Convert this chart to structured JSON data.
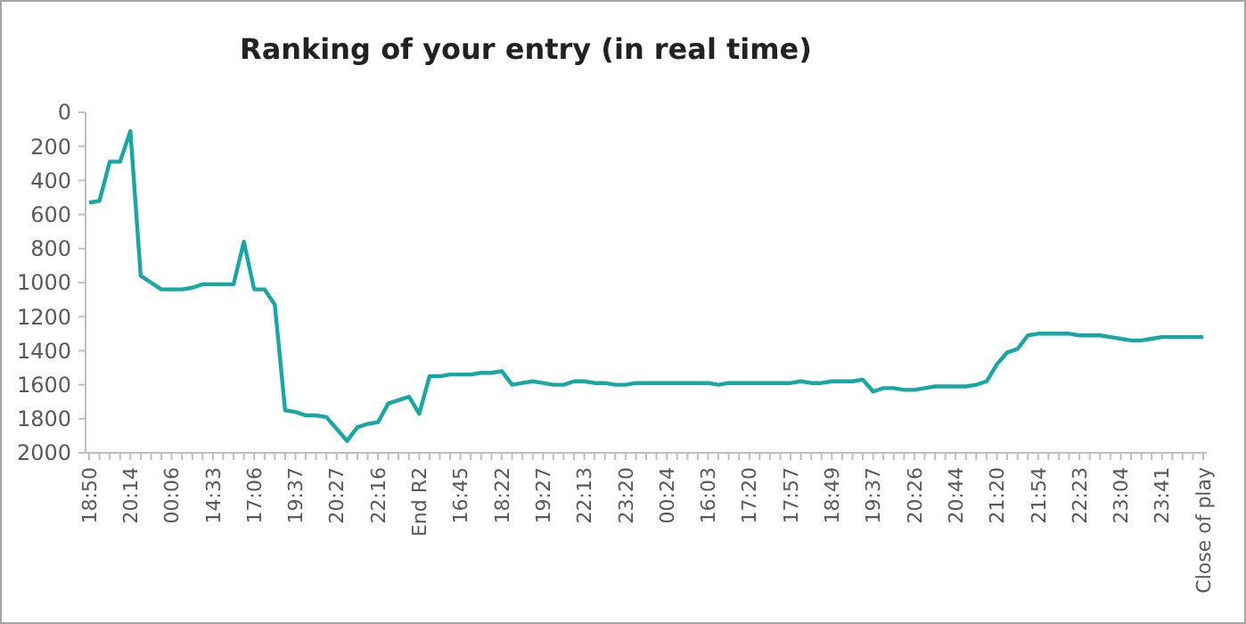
{
  "chart_data": {
    "type": "line",
    "title": "Ranking of your entry (in real time)",
    "categories": [
      "18:50",
      null,
      null,
      null,
      "20:14",
      null,
      null,
      null,
      "00:06",
      null,
      null,
      null,
      "14:33",
      null,
      null,
      null,
      "17:06",
      null,
      null,
      null,
      "19:37",
      null,
      null,
      null,
      "20:27",
      null,
      null,
      null,
      "22:16",
      null,
      null,
      null,
      "End R2",
      null,
      null,
      null,
      "16:45",
      null,
      null,
      null,
      "18:22",
      null,
      null,
      null,
      "19:27",
      null,
      null,
      null,
      "22:13",
      null,
      null,
      null,
      "23:20",
      null,
      null,
      null,
      "00:24",
      null,
      null,
      null,
      "16:03",
      null,
      null,
      null,
      "17:20",
      null,
      null,
      null,
      "17:57",
      null,
      null,
      null,
      "18:49",
      null,
      null,
      null,
      "19:37",
      null,
      null,
      null,
      "20:26",
      null,
      null,
      null,
      "20:44",
      null,
      null,
      null,
      "21:20",
      null,
      null,
      null,
      "21:54",
      null,
      null,
      null,
      "22:23",
      null,
      null,
      null,
      "23:04",
      null,
      null,
      null,
      "23:41",
      null,
      null,
      null,
      "Close of play"
    ],
    "series": [
      {
        "color": "#17a8a4",
        "values": [
          530,
          520,
          290,
          290,
          110,
          960,
          1000,
          1040,
          1040,
          1040,
          1030,
          1010,
          1010,
          1010,
          1010,
          760,
          1040,
          1040,
          1130,
          1750,
          1760,
          1780,
          1780,
          1790,
          1860,
          1930,
          1850,
          1830,
          1820,
          1710,
          1690,
          1670,
          1770,
          1550,
          1550,
          1540,
          1540,
          1540,
          1530,
          1530,
          1520,
          1600,
          1590,
          1580,
          1590,
          1600,
          1600,
          1580,
          1580,
          1590,
          1590,
          1600,
          1600,
          1590,
          1590,
          1590,
          1590,
          1590,
          1590,
          1590,
          1590,
          1600,
          1590,
          1590,
          1590,
          1590,
          1590,
          1590,
          1590,
          1580,
          1590,
          1590,
          1580,
          1580,
          1580,
          1570,
          1640,
          1620,
          1620,
          1630,
          1630,
          1620,
          1610,
          1610,
          1610,
          1610,
          1600,
          1580,
          1480,
          1410,
          1390,
          1310,
          1300,
          1300,
          1300,
          1300,
          1310,
          1310,
          1310,
          1320,
          1330,
          1340,
          1340,
          1330,
          1320,
          1320,
          1320,
          1320,
          1320
        ]
      }
    ],
    "ylim": [
      2000,
      0
    ],
    "yticks": [
      0,
      200,
      400,
      600,
      800,
      1000,
      1200,
      1400,
      1600,
      1800,
      2000
    ],
    "grid": false,
    "marker": "none",
    "line_style": "solid"
  }
}
